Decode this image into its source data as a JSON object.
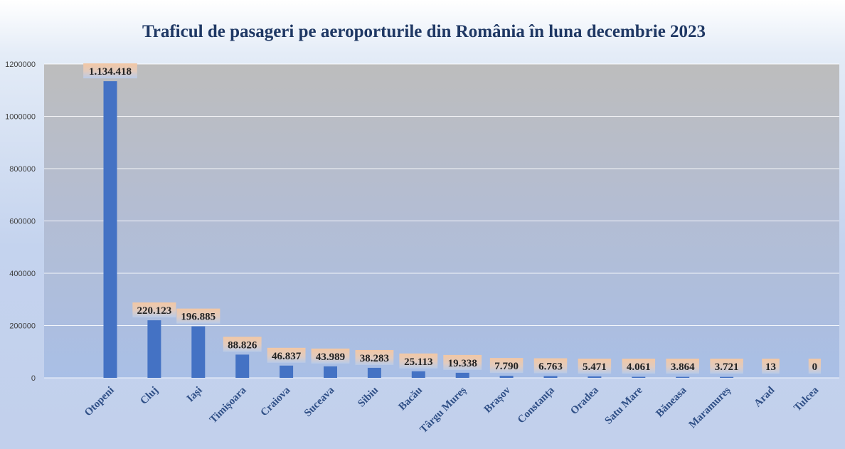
{
  "chart_data": {
    "type": "bar",
    "title": "Traficul de pasageri pe aeroporturile din România în luna decembrie 2023",
    "xlabel": "",
    "ylabel": "",
    "ylim": [
      0,
      1200000
    ],
    "yticks": [
      "0",
      "200000",
      "400000",
      "600000",
      "800000",
      "1000000",
      "1200000"
    ],
    "grid": true,
    "legend": "none",
    "bar_color": "#4472c4",
    "categories": [
      "Otopeni",
      "Cluj",
      "Iași",
      "Timișoara",
      "Craiova",
      "Suceava",
      "Sibiu",
      "Bacău",
      "Târgu Mureș",
      "Brașov",
      "Constanța",
      "Oradea",
      "Satu Mare",
      "Băneasa",
      "Maramureș",
      "Arad",
      "Tulcea"
    ],
    "values": [
      1134418,
      220123,
      196885,
      88826,
      46837,
      43989,
      38283,
      25113,
      19338,
      7790,
      6763,
      5471,
      4061,
      3864,
      3721,
      13,
      0
    ],
    "data_labels": [
      "1.134.418",
      "220.123",
      "196.885",
      "88.826",
      "46.837",
      "43.989",
      "38.283",
      "25.113",
      "19.338",
      "7.790",
      "6.763",
      "5.471",
      "4.061",
      "3.864",
      "3.721",
      "13",
      "0"
    ]
  }
}
